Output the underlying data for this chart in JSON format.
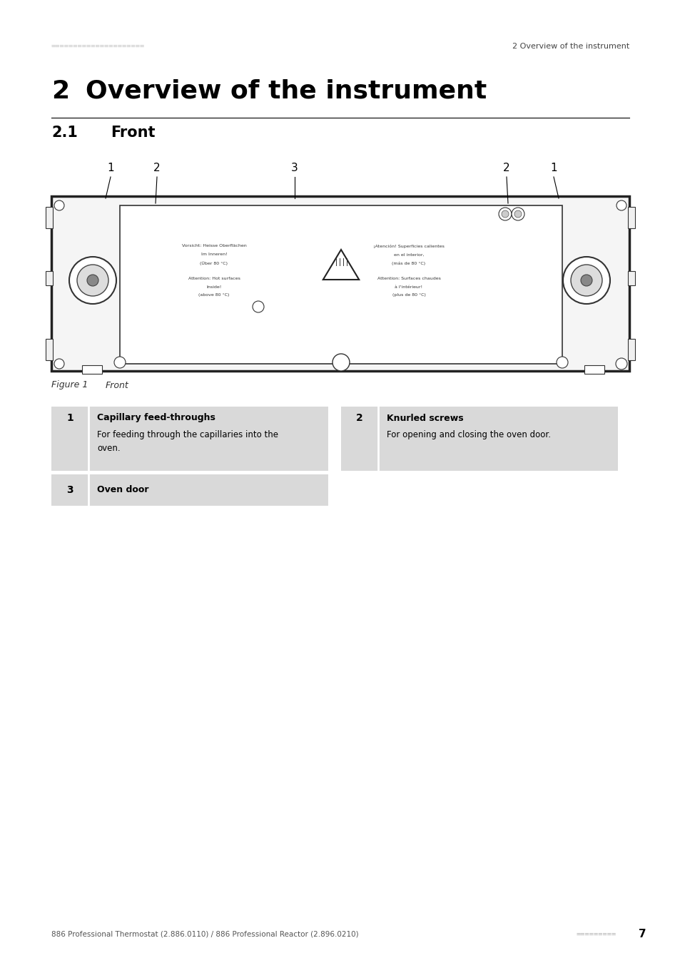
{
  "page_bg": "#ffffff",
  "table_bg": "#d9d9d9",
  "header_dots": "=====================",
  "header_right": "2 Overview of the instrument",
  "section_num": "2",
  "section_title": "Overview of the instrument",
  "sub_num": "2.1",
  "sub_title": "Front",
  "figure_label": "Figure 1",
  "figure_label2": "Front",
  "items": [
    {
      "num": "1",
      "title": "Capillary feed-throughs",
      "desc1": "For feeding through the capillaries into the",
      "desc2": "oven.",
      "col": 0
    },
    {
      "num": "2",
      "title": "Knurled screws",
      "desc1": "For opening and closing the oven door.",
      "desc2": "",
      "col": 1
    },
    {
      "num": "3",
      "title": "Oven door",
      "desc1": "",
      "desc2": "",
      "col": 0
    }
  ],
  "footer_left": "886 Professional Thermostat (2.886.0110) / 886 Professional Reactor (2.896.0210)",
  "footer_dots": "=========",
  "footer_num": "7"
}
